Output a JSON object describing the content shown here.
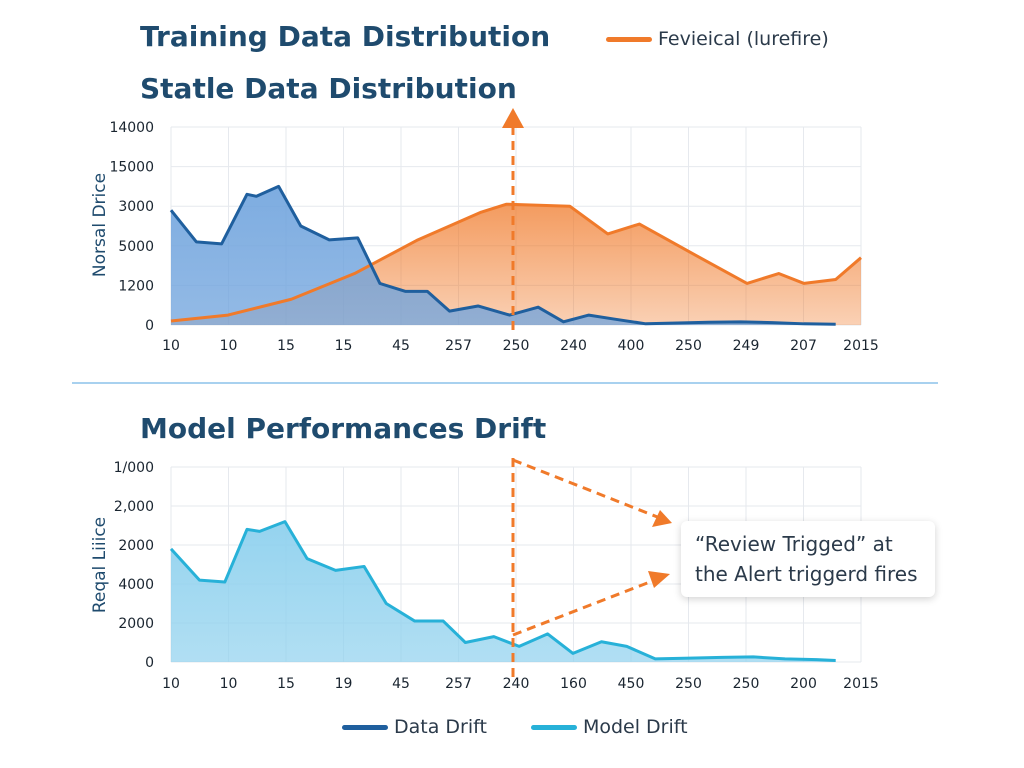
{
  "titles": {
    "main": "Training Data Distribution",
    "second": "Statle Data Distribution",
    "third": "Model Performances Drift"
  },
  "legend_top": {
    "label": "Fevieical (lurefire)",
    "color": "#f07a2a"
  },
  "legend_bottom": [
    {
      "label": "Data Drift",
      "color": "#1f5f9e"
    },
    {
      "label": "Model Drift",
      "color": "#27b1d8"
    }
  ],
  "callout": {
    "line1": "“Review Trigged” at",
    "line2": "the Alert triggerd fires"
  },
  "colors": {
    "orange": "#f07a2a",
    "blue_line": "#1f5f9e",
    "blue_fill": "#6fa3dd",
    "cyan_line": "#27b1d8",
    "cyan_fill": "#8fd1ee",
    "grid": "#e6e9ee",
    "axis_text": "#1a2530"
  },
  "chart_data": [
    {
      "type": "area",
      "title": "Statle Data Distribution",
      "ylabel": "Norsal Drice",
      "y_tick_labels": [
        "0",
        "1200",
        "5000",
        "3000",
        "15000",
        "14000"
      ],
      "y_tick_positions": [
        0,
        1,
        2,
        3,
        4,
        5
      ],
      "x_tick_labels": [
        "10",
        "10",
        "15",
        "15",
        "45",
        "257",
        "250",
        "240",
        "400",
        "250",
        "249",
        "207",
        "2015"
      ],
      "ylim": [
        0,
        5
      ],
      "grid": true,
      "series": [
        {
          "name": "Data Drift",
          "points": [
            [
              0,
              2.9
            ],
            [
              0.4,
              2.1
            ],
            [
              0.8,
              2.05
            ],
            [
              1.2,
              3.3
            ],
            [
              1.35,
              3.25
            ],
            [
              1.7,
              3.5
            ],
            [
              2.05,
              2.5
            ],
            [
              2.5,
              2.15
            ],
            [
              2.95,
              2.2
            ],
            [
              3.3,
              1.05
            ],
            [
              3.7,
              0.85
            ],
            [
              4.05,
              0.85
            ],
            [
              4.4,
              0.35
            ],
            [
              4.85,
              0.48
            ],
            [
              5.35,
              0.25
            ],
            [
              5.8,
              0.45
            ],
            [
              6.2,
              0.08
            ],
            [
              6.6,
              0.25
            ],
            [
              7.0,
              0.15
            ],
            [
              7.5,
              0.03
            ],
            [
              8.0,
              0.05
            ],
            [
              8.5,
              0.07
            ],
            [
              9.0,
              0.08
            ],
            [
              9.5,
              0.06
            ],
            [
              10.0,
              0.03
            ],
            [
              10.5,
              0.02
            ]
          ]
        },
        {
          "name": "Fevieical (lurefire)",
          "points": [
            [
              0,
              0.1
            ],
            [
              0.9,
              0.25
            ],
            [
              1.9,
              0.65
            ],
            [
              2.9,
              1.3
            ],
            [
              3.9,
              2.15
            ],
            [
              4.9,
              2.85
            ],
            [
              5.3,
              3.05
            ],
            [
              6.3,
              3.0
            ],
            [
              6.9,
              2.3
            ],
            [
              7.4,
              2.55
            ],
            [
              8.3,
              1.75
            ],
            [
              9.1,
              1.05
            ],
            [
              9.6,
              1.3
            ],
            [
              10.0,
              1.05
            ],
            [
              10.5,
              1.15
            ],
            [
              10.9,
              1.7
            ]
          ]
        }
      ]
    },
    {
      "type": "area",
      "title": "Model Performances Drift",
      "ylabel": "Reqal Liiice",
      "y_tick_labels": [
        "0",
        "2000",
        "4000",
        "2000",
        "2,000",
        "1/000"
      ],
      "y_tick_positions": [
        0,
        1,
        2,
        3,
        4,
        5
      ],
      "x_tick_labels": [
        "10",
        "10",
        "15",
        "19",
        "45",
        "257",
        "240",
        "160",
        "450",
        "250",
        "250",
        "200",
        "2015"
      ],
      "ylim": [
        0,
        5
      ],
      "grid": true,
      "series": [
        {
          "name": "Model Drift",
          "points": [
            [
              0,
              2.9
            ],
            [
              0.45,
              2.1
            ],
            [
              0.85,
              2.05
            ],
            [
              1.2,
              3.4
            ],
            [
              1.4,
              3.35
            ],
            [
              1.8,
              3.6
            ],
            [
              2.15,
              2.65
            ],
            [
              2.6,
              2.35
            ],
            [
              3.05,
              2.45
            ],
            [
              3.4,
              1.5
            ],
            [
              3.85,
              1.05
            ],
            [
              4.3,
              1.05
            ],
            [
              4.65,
              0.5
            ],
            [
              5.1,
              0.65
            ],
            [
              5.5,
              0.4
            ],
            [
              5.95,
              0.72
            ],
            [
              6.35,
              0.22
            ],
            [
              6.8,
              0.52
            ],
            [
              7.2,
              0.4
            ],
            [
              7.65,
              0.08
            ],
            [
              8.2,
              0.1
            ],
            [
              8.7,
              0.12
            ],
            [
              9.2,
              0.13
            ],
            [
              9.7,
              0.08
            ],
            [
              10.2,
              0.06
            ],
            [
              10.5,
              0.04
            ]
          ]
        }
      ]
    }
  ]
}
